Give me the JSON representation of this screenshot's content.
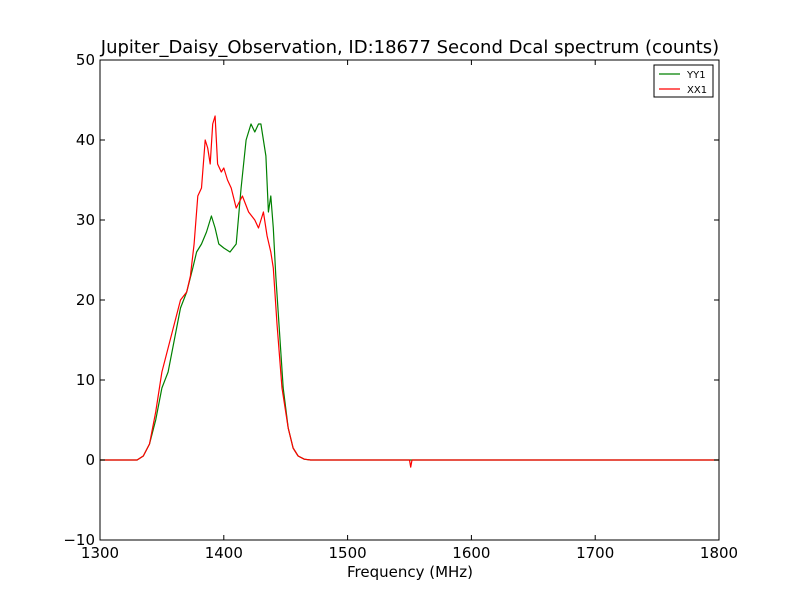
{
  "chart_data": {
    "type": "line",
    "title": "Jupiter_Daisy_Observation, ID:18677 Second Dcal spectrum (counts)",
    "xlabel": "Frequency (MHz)",
    "ylabel": "",
    "xlim": [
      1300,
      1800
    ],
    "ylim": [
      -10,
      50
    ],
    "xticks": [
      "1300",
      "1400",
      "1500",
      "1600",
      "1700",
      "1800"
    ],
    "yticks": [
      "−10",
      "0",
      "10",
      "20",
      "30",
      "40",
      "50"
    ],
    "legend_position": "top-right",
    "grid": false,
    "series": [
      {
        "name": "YY1",
        "color": "#008000",
        "x": [
          1300,
          1330,
          1335,
          1340,
          1345,
          1350,
          1355,
          1360,
          1365,
          1370,
          1375,
          1378,
          1382,
          1386,
          1390,
          1393,
          1396,
          1400,
          1405,
          1410,
          1414,
          1418,
          1422,
          1425,
          1428,
          1430,
          1432,
          1434,
          1436,
          1438,
          1440,
          1442,
          1445,
          1448,
          1452,
          1456,
          1460,
          1465,
          1470,
          1475,
          1480,
          1800
        ],
        "y": [
          0,
          0,
          0.5,
          2,
          5,
          9,
          11,
          15,
          19,
          21,
          24,
          26,
          27,
          28.5,
          30.5,
          29,
          27,
          26.5,
          26,
          27,
          34,
          40,
          42,
          41,
          42,
          42,
          40,
          38,
          31,
          33,
          29,
          23,
          16,
          9,
          4,
          1.5,
          0.5,
          0.1,
          0,
          0,
          0,
          0
        ]
      },
      {
        "name": "XX1",
        "color": "#ff0000",
        "x": [
          1300,
          1330,
          1335,
          1340,
          1345,
          1350,
          1355,
          1360,
          1365,
          1370,
          1373,
          1376,
          1379,
          1382,
          1385,
          1387,
          1389,
          1391,
          1393,
          1395,
          1398,
          1400,
          1403,
          1406,
          1410,
          1415,
          1420,
          1425,
          1428,
          1432,
          1435,
          1438,
          1440,
          1443,
          1447,
          1452,
          1456,
          1460,
          1465,
          1470,
          1475,
          1480,
          1550,
          1551,
          1552,
          1800
        ],
        "y": [
          0,
          0,
          0.5,
          2,
          6,
          11,
          14,
          17,
          20,
          21,
          23,
          27,
          33,
          34,
          40,
          39,
          37,
          42,
          43,
          37,
          36,
          36.5,
          35,
          34,
          31.5,
          33,
          31,
          30,
          29,
          31,
          28,
          26,
          24,
          17,
          9,
          4,
          1.5,
          0.5,
          0.1,
          0,
          0,
          0,
          0,
          -0.9,
          0,
          0
        ]
      }
    ]
  }
}
